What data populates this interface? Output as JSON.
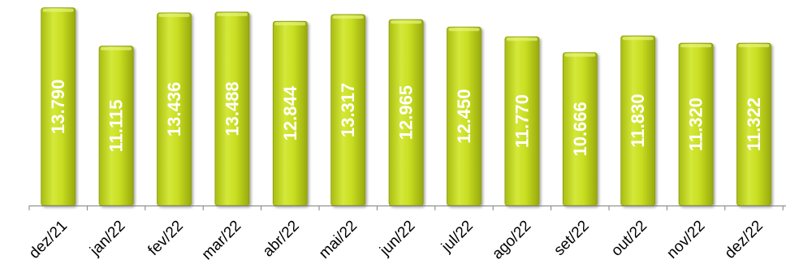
{
  "chart_data": {
    "type": "bar",
    "categories": [
      "dez/21",
      "jan/22",
      "fev/22",
      "mar/22",
      "abr/22",
      "mai/22",
      "jun/22",
      "jul/22",
      "ago/22",
      "set/22",
      "out/22",
      "nov/22",
      "dez/22"
    ],
    "values": [
      13790,
      11115,
      13436,
      13488,
      12844,
      13317,
      12965,
      12450,
      11770,
      10666,
      11830,
      11320,
      11322
    ],
    "value_labels": [
      "13.790",
      "11.115",
      "13.436",
      "13.488",
      "12.844",
      "13.317",
      "12.965",
      "12.450",
      "11.770",
      "10.666",
      "11.830",
      "11.320",
      "11.322"
    ],
    "ylim": [
      0,
      14000
    ],
    "grid": false,
    "colors": {
      "bar_fill": "#c6dc1f",
      "bar_edge": "#8a9a10",
      "label": "#ffffff",
      "axis": "#808080"
    }
  }
}
